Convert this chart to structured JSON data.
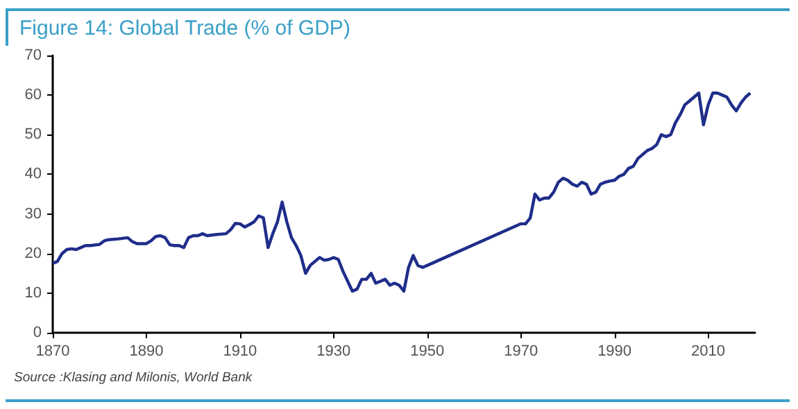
{
  "chart_data": {
    "type": "line",
    "title": "Figure 14: Global Trade (% of GDP)",
    "annotations": [
      "Source :Klasing and Milonis, World Bank"
    ],
    "x": [
      1870,
      1871,
      1872,
      1873,
      1874,
      1875,
      1876,
      1877,
      1878,
      1880,
      1881,
      1882,
      1884,
      1886,
      1887,
      1888,
      1889,
      1890,
      1891,
      1892,
      1893,
      1894,
      1895,
      1896,
      1897,
      1898,
      1899,
      1900,
      1901,
      1902,
      1903,
      1905,
      1907,
      1908,
      1909,
      1910,
      1911,
      1912,
      1913,
      1914,
      1915,
      1916,
      1917,
      1918,
      1919,
      1920,
      1921,
      1922,
      1923,
      1924,
      1925,
      1926,
      1927,
      1928,
      1929,
      1930,
      1931,
      1932,
      1933,
      1934,
      1935,
      1936,
      1937,
      1938,
      1939,
      1940,
      1941,
      1942,
      1943,
      1944,
      1945,
      1946,
      1947,
      1948,
      1949,
      1950,
      1970,
      1971,
      1972,
      1973,
      1974,
      1975,
      1976,
      1977,
      1978,
      1979,
      1980,
      1981,
      1982,
      1983,
      1984,
      1985,
      1986,
      1987,
      1988,
      1989,
      1990,
      1991,
      1992,
      1993,
      1994,
      1995,
      1996,
      1997,
      1998,
      1999,
      2000,
      2001,
      2002,
      2003,
      2004,
      2005,
      2006,
      2007,
      2008,
      2009,
      2010,
      2011,
      2012,
      2013,
      2014,
      2015,
      2016,
      2017,
      2018,
      2019
    ],
    "series": [
      {
        "color": "#1f2d8a",
        "values": [
          17.5,
          18,
          20,
          21,
          21.2,
          21,
          21.5,
          22,
          22,
          22.3,
          23.2,
          23.5,
          23.7,
          24,
          23,
          22.5,
          22.5,
          22.5,
          23.2,
          24.3,
          24.5,
          24,
          22.2,
          22,
          22,
          21.5,
          24,
          24.5,
          24.5,
          25,
          24.5,
          24.8,
          25,
          26,
          27.6,
          27.5,
          26.7,
          27.3,
          28,
          29.5,
          29,
          21.5,
          25,
          28,
          33,
          28,
          24,
          22,
          19.5,
          15,
          17,
          18,
          19,
          18.3,
          18.5,
          19,
          18.5,
          15.5,
          13,
          10.5,
          11,
          13.5,
          13.5,
          15,
          12.5,
          13,
          13.5,
          12,
          12.5,
          12,
          10.5,
          16.5,
          19.5,
          17,
          16.5,
          17,
          27.5,
          27.5,
          29,
          35,
          33.5,
          34,
          34,
          35.5,
          38,
          39,
          38.5,
          37.5,
          37,
          38,
          37.5,
          35,
          35.5,
          37.5,
          38,
          38.3,
          38.5,
          39.5,
          40,
          41.5,
          42,
          44,
          45,
          46,
          46.5,
          47.5,
          50,
          49.5,
          50,
          53,
          55,
          57.5,
          58.5,
          59.5,
          60.5,
          52.5,
          57.5,
          60.5,
          60.5,
          60,
          59.5,
          57.5,
          56,
          58,
          59.5,
          60.5
        ]
      }
    ],
    "xlim": [
      1870,
      2020
    ],
    "xticks": [
      1870,
      1890,
      1910,
      1930,
      1950,
      1970,
      1990,
      2010
    ],
    "ylim": [
      0,
      70
    ],
    "yticks": [
      0,
      10,
      20,
      30,
      40,
      50,
      60,
      70
    ],
    "grid": false,
    "marker": "none",
    "line_style": "solid"
  }
}
